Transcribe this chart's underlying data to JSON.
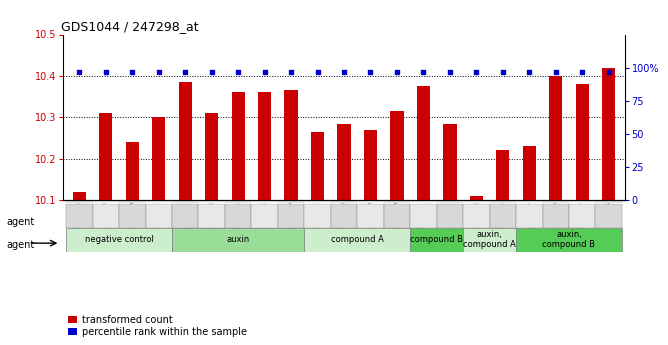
{
  "title": "GDS1044 / 247298_at",
  "samples": [
    "GSM25858",
    "GSM25859",
    "GSM25860",
    "GSM25861",
    "GSM25862",
    "GSM25863",
    "GSM25864",
    "GSM25865",
    "GSM25866",
    "GSM25867",
    "GSM25868",
    "GSM25869",
    "GSM25870",
    "GSM25871",
    "GSM25872",
    "GSM25873",
    "GSM25874",
    "GSM25875",
    "GSM25876",
    "GSM25877",
    "GSM25878"
  ],
  "bar_values": [
    10.12,
    10.31,
    10.24,
    10.3,
    10.385,
    10.31,
    10.36,
    10.36,
    10.365,
    10.265,
    10.285,
    10.27,
    10.315,
    10.375,
    10.285,
    10.11,
    10.22,
    10.23,
    10.4,
    10.38,
    10.42
  ],
  "dot_percentiles": [
    97,
    97,
    97,
    97,
    97,
    97,
    97,
    97,
    97,
    97,
    97,
    97,
    97,
    97,
    97,
    97,
    97,
    97,
    97,
    97,
    97
  ],
  "ylim": [
    10.1,
    10.5
  ],
  "y2lim": [
    0,
    125
  ],
  "yticks": [
    10.1,
    10.2,
    10.3,
    10.4,
    10.5
  ],
  "y2ticks": [
    0,
    25,
    50,
    75,
    100
  ],
  "y2ticklabels": [
    "0",
    "25",
    "50",
    "75",
    "100%"
  ],
  "bar_color": "#cc0000",
  "dot_color": "#0000cc",
  "groups": [
    {
      "label": "negative control",
      "start": 0,
      "end": 3,
      "color": "#cceecc"
    },
    {
      "label": "auxin",
      "start": 4,
      "end": 8,
      "color": "#99dd99"
    },
    {
      "label": "compound A",
      "start": 9,
      "end": 12,
      "color": "#cceecc"
    },
    {
      "label": "compound B",
      "start": 13,
      "end": 14,
      "color": "#55cc55"
    },
    {
      "label": "auxin,\ncompound A",
      "start": 15,
      "end": 16,
      "color": "#cceecc"
    },
    {
      "label": "auxin,\ncompound B",
      "start": 17,
      "end": 20,
      "color": "#55cc55"
    }
  ],
  "legend_red": "transformed count",
  "legend_blue": "percentile rank within the sample",
  "agent_label": "agent",
  "yticklabel_color": "#cc0000",
  "y2ticklabel_color": "#0000cc"
}
